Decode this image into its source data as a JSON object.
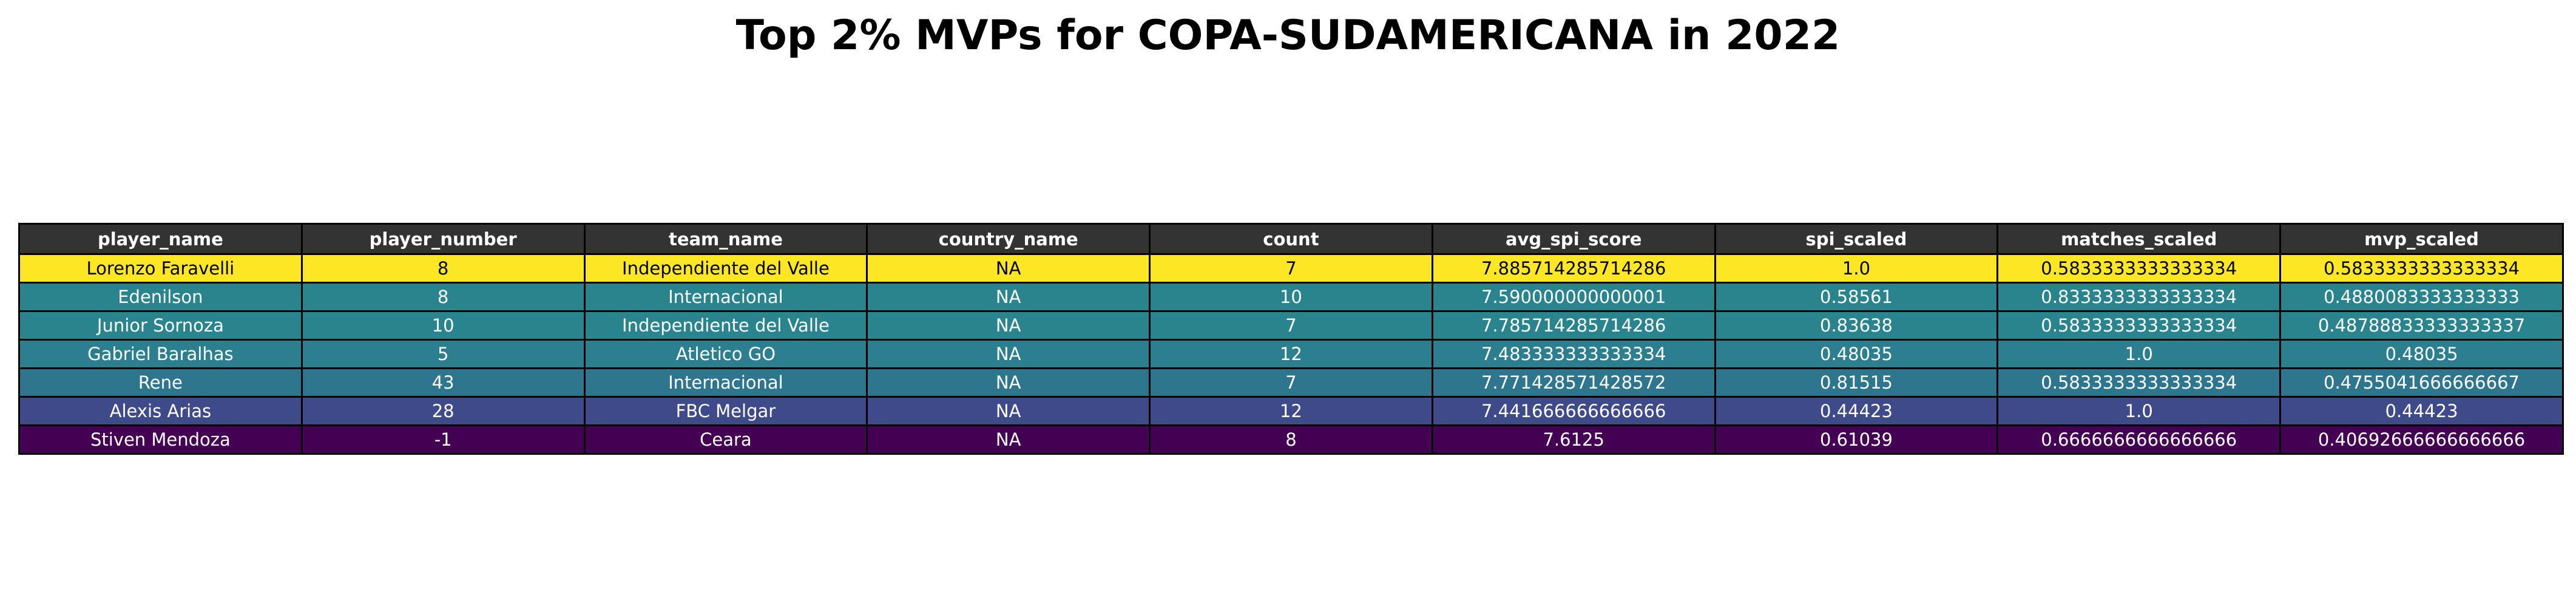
{
  "title": "Top 2% MVPs for COPA-SUDAMERICANA in 2022",
  "chart_data": {
    "type": "table",
    "title": "Top 2% MVPs for COPA-SUDAMERICANA in 2022",
    "header_color": "#333333",
    "columns": [
      "player_name",
      "player_number",
      "team_name",
      "country_name",
      "count",
      "avg_spi_score",
      "spi_scaled",
      "matches_scaled",
      "mvp_scaled"
    ],
    "rows": [
      {
        "cells": [
          "Lorenzo Faravelli",
          "8",
          "Independiente del Valle",
          "NA",
          "7",
          "7.885714285714286",
          "1.0",
          "0.5833333333333334",
          "0.5833333333333334"
        ],
        "bg": "#fde725",
        "fg": "#000000"
      },
      {
        "cells": [
          "Edenilson",
          "8",
          "Internacional",
          "NA",
          "10",
          "7.590000000000001",
          "0.58561",
          "0.8333333333333334",
          "0.4880083333333333"
        ],
        "bg": "#29848e",
        "fg": "#ffffff"
      },
      {
        "cells": [
          "Junior Sornoza",
          "10",
          "Independiente del Valle",
          "NA",
          "7",
          "7.785714285714286",
          "0.83638",
          "0.5833333333333334",
          "0.48788833333333337"
        ],
        "bg": "#29848e",
        "fg": "#ffffff"
      },
      {
        "cells": [
          "Gabriel Baralhas",
          "5",
          "Atletico GO",
          "NA",
          "12",
          "7.483333333333334",
          "0.48035",
          "1.0",
          "0.48035"
        ],
        "bg": "#2b7f8e",
        "fg": "#ffffff"
      },
      {
        "cells": [
          "Rene",
          "43",
          "Internacional",
          "NA",
          "7",
          "7.771428571428572",
          "0.81515",
          "0.5833333333333334",
          "0.4755041666666667"
        ],
        "bg": "#2e758e",
        "fg": "#ffffff"
      },
      {
        "cells": [
          "Alexis Arias",
          "28",
          "FBC Melgar",
          "NA",
          "12",
          "7.441666666666666",
          "0.44423",
          "1.0",
          "0.44423"
        ],
        "bg": "#3e4a89",
        "fg": "#ffffff"
      },
      {
        "cells": [
          "Stiven Mendoza",
          "-1",
          "Ceara",
          "NA",
          "8",
          "7.6125",
          "0.61039",
          "0.6666666666666666",
          "0.40692666666666666"
        ],
        "bg": "#440154",
        "fg": "#ffffff"
      }
    ]
  }
}
